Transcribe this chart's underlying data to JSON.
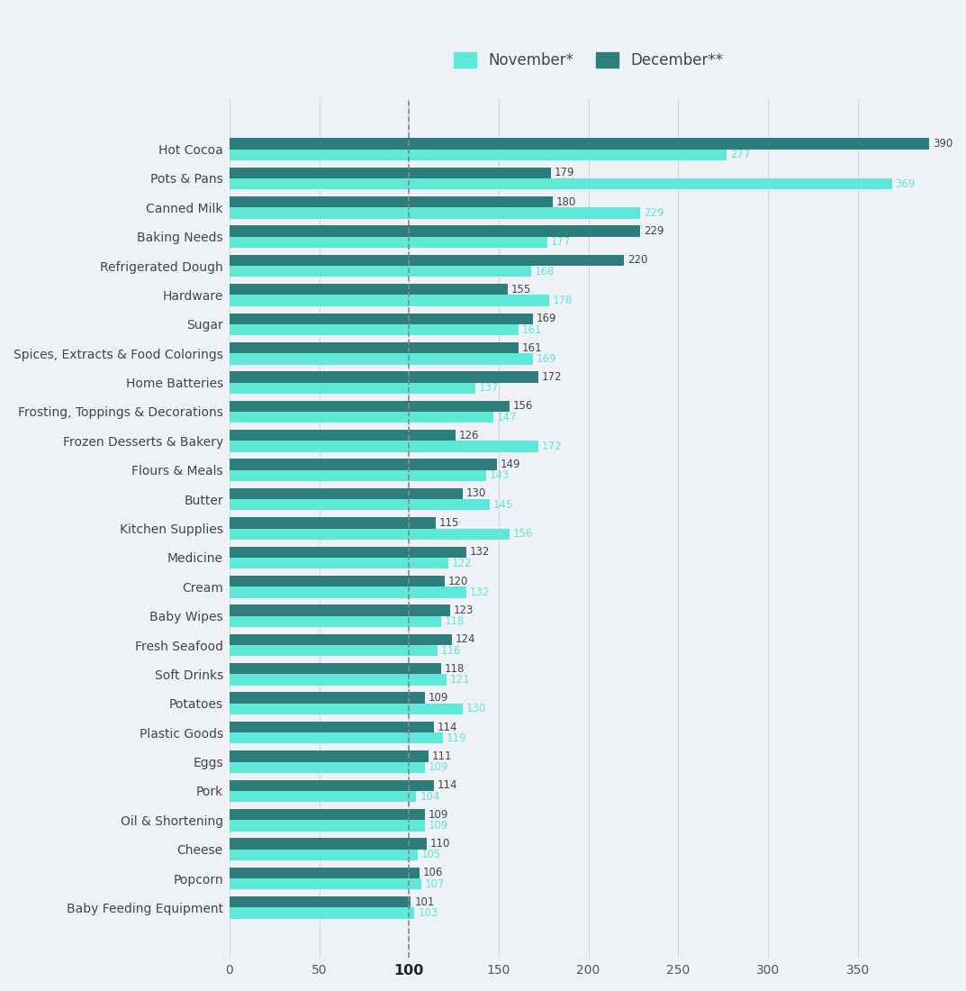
{
  "categories": [
    "Hot Cocoa",
    "Pots & Pans",
    "Canned Milk",
    "Baking Needs",
    "Refrigerated Dough",
    "Hardware",
    "Sugar",
    "Spices, Extracts & Food Colorings",
    "Home Batteries",
    "Frosting, Toppings & Decorations",
    "Frozen Desserts & Bakery",
    "Flours & Meals",
    "Butter",
    "Kitchen Supplies",
    "Medicine",
    "Cream",
    "Baby Wipes",
    "Fresh Seafood",
    "Soft Drinks",
    "Potatoes",
    "Plastic Goods",
    "Eggs",
    "Pork",
    "Oil & Shortening",
    "Cheese",
    "Popcorn",
    "Baby Feeding Equipment"
  ],
  "december_values": [
    390,
    179,
    180,
    229,
    220,
    155,
    169,
    161,
    172,
    156,
    126,
    149,
    130,
    115,
    132,
    120,
    123,
    124,
    118,
    109,
    114,
    111,
    114,
    109,
    110,
    106,
    101
  ],
  "november_values": [
    277,
    369,
    229,
    177,
    168,
    178,
    161,
    169,
    137,
    147,
    172,
    143,
    145,
    156,
    122,
    132,
    118,
    116,
    121,
    130,
    119,
    109,
    104,
    109,
    105,
    107,
    103
  ],
  "december_color": "#2e7d7d",
  "november_color": "#5ee8d8",
  "dec_label_color": "#444444",
  "nov_label_color": "#5ee8d8",
  "background_color": "#eef2f7",
  "legend_november": "November*",
  "legend_december": "December**",
  "xlim": [
    0,
    400
  ],
  "xticks": [
    0,
    50,
    100,
    150,
    200,
    250,
    300,
    350
  ],
  "vline_x": 100,
  "bar_height": 0.38,
  "label_fontsize": 10,
  "tick_fontsize": 10,
  "value_fontsize": 8.5
}
